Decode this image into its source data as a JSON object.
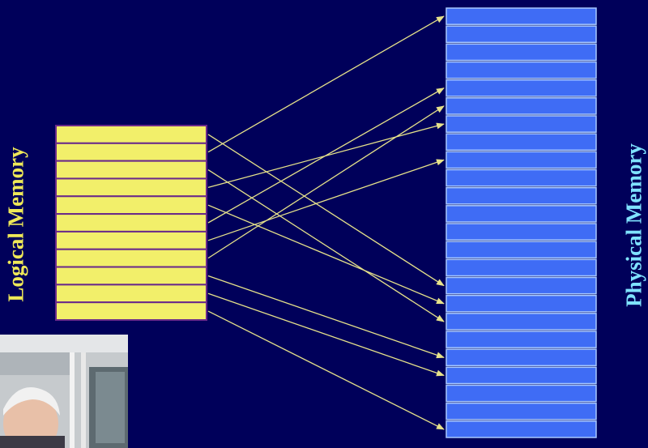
{
  "labels": {
    "logical": "Logical Memory",
    "physical": "Physical Memory"
  },
  "colors": {
    "background": "#00005a",
    "logical_frame": "#f2ef6a",
    "logical_divider": "#6a2a8a",
    "physical_frame": "#3f6cf5",
    "physical_divider": "#a8c8ff",
    "arrow": "#e6e28a",
    "logical_label": "#eee858",
    "physical_label": "#7fe2ff"
  },
  "logical_pages": 11,
  "physical_frames": 24,
  "mappings": [
    {
      "page": 1,
      "frame": 16
    },
    {
      "page": 2,
      "frame": 1
    },
    {
      "page": 3,
      "frame": 18
    },
    {
      "page": 4,
      "frame": 7
    },
    {
      "page": 5,
      "frame": 17
    },
    {
      "page": 6,
      "frame": 5
    },
    {
      "page": 7,
      "frame": 9
    },
    {
      "page": 8,
      "frame": 6
    },
    {
      "page": 9,
      "frame": 20
    },
    {
      "page": 10,
      "frame": 21
    },
    {
      "page": 11,
      "frame": 24
    }
  ],
  "webcam": {
    "icon": "presenter-webcam-icon"
  }
}
